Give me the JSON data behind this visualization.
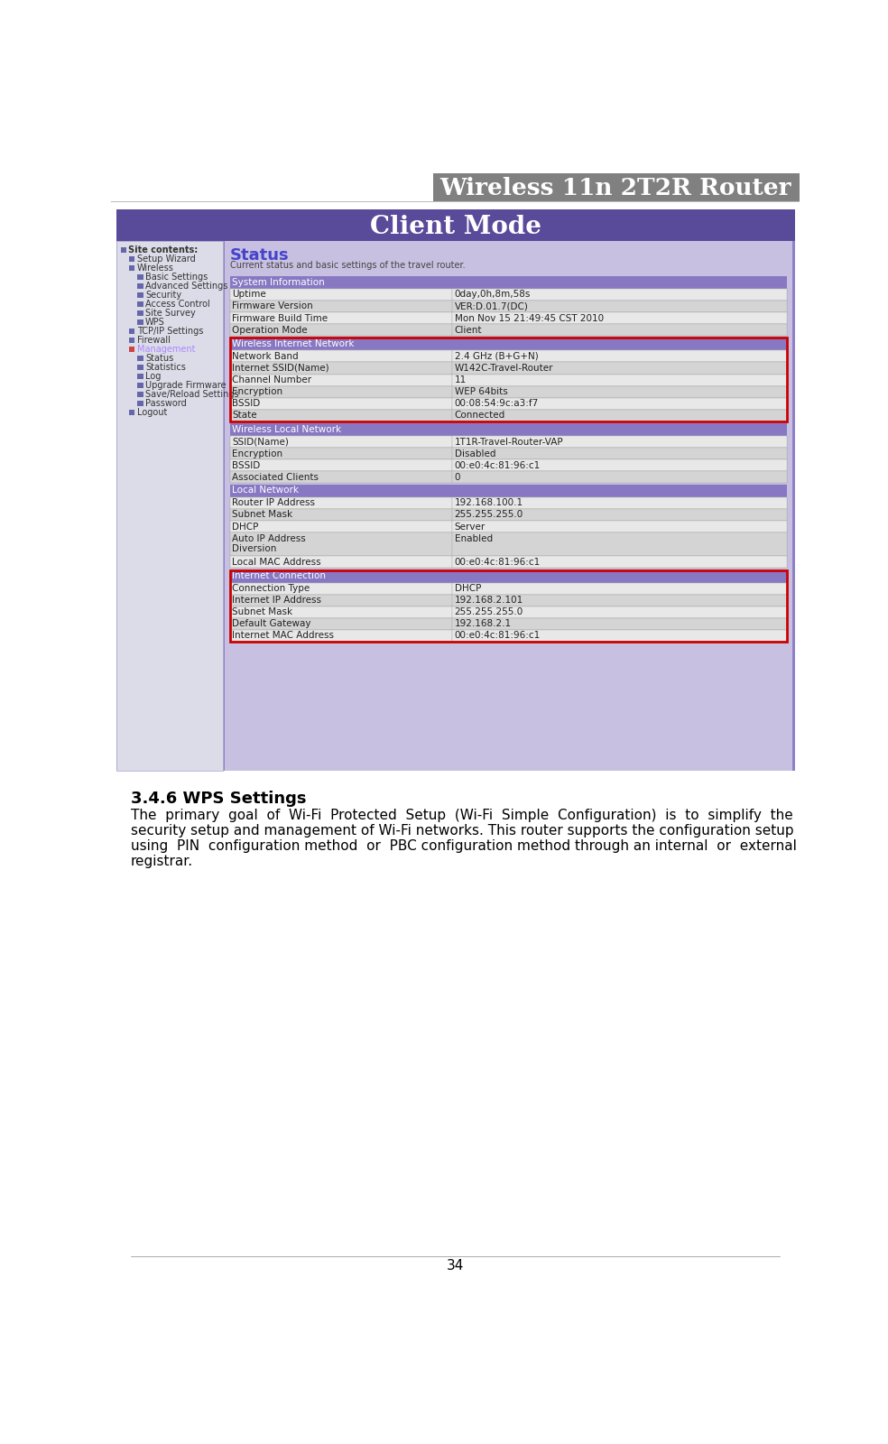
{
  "title": "Wireless 11n 2T2R Router",
  "title_bg": "#808080",
  "title_color": "#ffffff",
  "page_number": "34",
  "section_heading": "3.4.6 WPS Settings",
  "para_lines": [
    "The  primary  goal  of  Wi-Fi  Protected  Setup  (Wi-Fi  Simple  Configuration)  is  to  simplify  the",
    "security setup and management of Wi-Fi networks. This router supports the configuration setup",
    "using  PIN  configuration method  or  PBC configuration method through an internal  or  external",
    "registrar."
  ],
  "screenshot_bg": "#9080c8",
  "client_mode_bar_color": "#5a4a9a",
  "client_mode_text": "Client Mode",
  "status_text": "Status",
  "status_color": "#4444cc",
  "status_desc": "Current status and basic settings of the travel router.",
  "sidebar_items": [
    {
      "text": "Site contents:",
      "indent": 0,
      "bold": true
    },
    {
      "text": "Setup Wizard",
      "indent": 1
    },
    {
      "text": "Wireless",
      "indent": 1
    },
    {
      "text": "Basic Settings",
      "indent": 2
    },
    {
      "text": "Advanced Settings",
      "indent": 2
    },
    {
      "text": "Security",
      "indent": 2
    },
    {
      "text": "Access Control",
      "indent": 2
    },
    {
      "text": "Site Survey",
      "indent": 2
    },
    {
      "text": "WPS",
      "indent": 2
    },
    {
      "text": "TCP/IP Settings",
      "indent": 1
    },
    {
      "text": "Firewall",
      "indent": 1
    },
    {
      "text": "Management",
      "indent": 1,
      "color": "#aa88ff"
    },
    {
      "text": "Status",
      "indent": 2
    },
    {
      "text": "Statistics",
      "indent": 2
    },
    {
      "text": "Log",
      "indent": 2
    },
    {
      "text": "Upgrade Firmware",
      "indent": 2
    },
    {
      "text": "Save/Reload Settings",
      "indent": 2
    },
    {
      "text": "Password",
      "indent": 2
    },
    {
      "text": "Logout",
      "indent": 1
    }
  ],
  "table_header_bg": "#8878c3",
  "table_row_bg1": "#e8e8e8",
  "table_row_bg2": "#d4d4d4",
  "table_border_color": "#aaaaaa",
  "red_border_color": "#cc0000",
  "system_info": {
    "header": "System Information",
    "rows": [
      [
        "Uptime",
        "0day,0h,8m,58s"
      ],
      [
        "Firmware Version",
        "VER:D.01.7(DC)"
      ],
      [
        "Firmware Build Time",
        "Mon Nov 15 21:49:45 CST 2010"
      ],
      [
        "Operation Mode",
        "Client"
      ]
    ],
    "red_border": false
  },
  "wireless_internet": {
    "header": "Wireless Internet Network",
    "rows": [
      [
        "Network Band",
        "2.4 GHz (B+G+N)"
      ],
      [
        "Internet SSID(Name)",
        "W142C-Travel-Router"
      ],
      [
        "Channel Number",
        "11"
      ],
      [
        "Encryption",
        "WEP 64bits"
      ],
      [
        "BSSID",
        "00:08:54:9c:a3:f7"
      ],
      [
        "State",
        "Connected"
      ]
    ],
    "red_border": true
  },
  "wireless_local": {
    "header": "Wireless Local Network",
    "rows": [
      [
        "SSID(Name)",
        "1T1R-Travel-Router-VAP"
      ],
      [
        "Encryption",
        "Disabled"
      ],
      [
        "BSSID",
        "00:e0:4c:81:96:c1"
      ],
      [
        "Associated Clients",
        "0"
      ]
    ],
    "red_border": false
  },
  "local_network": {
    "header": "Local Network",
    "rows": [
      [
        "Router IP Address",
        "192.168.100.1"
      ],
      [
        "Subnet Mask",
        "255.255.255.0"
      ],
      [
        "DHCP",
        "Server"
      ],
      [
        "Auto IP Address\nDiversion",
        "Enabled"
      ],
      [
        "Local MAC Address",
        "00:e0:4c:81:96:c1"
      ]
    ],
    "red_border": false
  },
  "internet_connection": {
    "header": "Internet Connection",
    "rows": [
      [
        "Connection Type",
        "DHCP"
      ],
      [
        "Internet IP Address",
        "192.168.2.101"
      ],
      [
        "Subnet Mask",
        "255.255.255.0"
      ],
      [
        "Default Gateway",
        "192.168.2.1"
      ],
      [
        "Internet MAC Address",
        "00:e0:4c:81:96:c1"
      ]
    ],
    "red_border": true
  }
}
